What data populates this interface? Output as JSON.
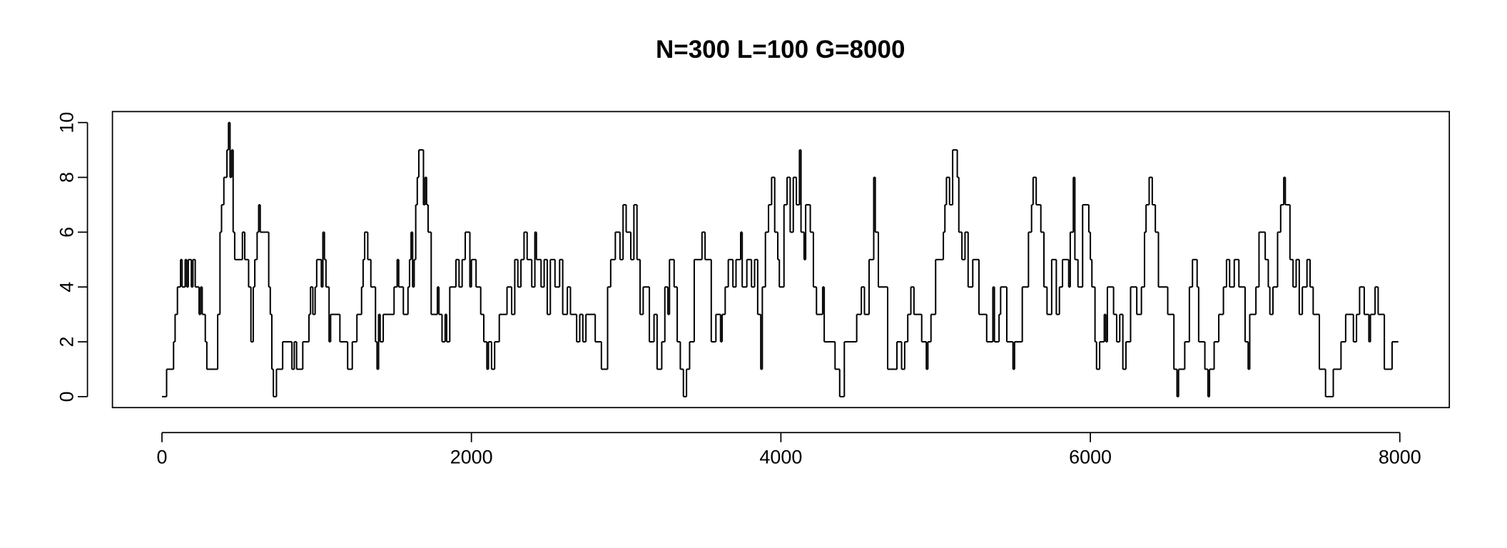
{
  "chart_data": {
    "type": "line",
    "step": true,
    "title": "N=300 L=100 G=8000",
    "color": "#000000",
    "x": [
      0,
      30,
      75,
      85,
      100,
      120,
      130,
      150,
      160,
      170,
      190,
      200,
      215,
      240,
      250,
      260,
      280,
      290,
      360,
      375,
      385,
      400,
      420,
      430,
      440,
      450,
      460,
      470,
      520,
      535,
      560,
      575,
      590,
      600,
      615,
      625,
      635,
      690,
      700,
      710,
      720,
      740,
      780,
      840,
      855,
      870,
      910,
      950,
      960,
      975,
      990,
      1000,
      1030,
      1040,
      1050,
      1060,
      1080,
      1090,
      1150,
      1200,
      1230,
      1260,
      1290,
      1300,
      1310,
      1330,
      1350,
      1380,
      1390,
      1400,
      1410,
      1430,
      1500,
      1520,
      1530,
      1560,
      1590,
      1600,
      1610,
      1620,
      1630,
      1640,
      1650,
      1660,
      1690,
      1700,
      1710,
      1720,
      1740,
      1780,
      1790,
      1810,
      1830,
      1840,
      1860,
      1900,
      1920,
      1940,
      1960,
      1990,
      2000,
      2030,
      2060,
      2080,
      2100,
      2110,
      2130,
      2150,
      2180,
      2230,
      2260,
      2280,
      2300,
      2320,
      2340,
      2360,
      2390,
      2410,
      2420,
      2450,
      2470,
      2490,
      2510,
      2540,
      2570,
      2590,
      2620,
      2640,
      2680,
      2700,
      2720,
      2740,
      2800,
      2840,
      2880,
      2900,
      2930,
      2960,
      2980,
      3000,
      3030,
      3050,
      3070,
      3090,
      3110,
      3150,
      3180,
      3200,
      3230,
      3250,
      3270,
      3280,
      3310,
      3330,
      3350,
      3370,
      3390,
      3410,
      3440,
      3490,
      3510,
      3550,
      3580,
      3610,
      3620,
      3640,
      3660,
      3690,
      3710,
      3740,
      3750,
      3780,
      3810,
      3830,
      3850,
      3870,
      3880,
      3900,
      3920,
      3940,
      3960,
      3980,
      3990,
      4020,
      4040,
      4060,
      4080,
      4100,
      4120,
      4130,
      4150,
      4160,
      4190,
      4210,
      4230,
      4270,
      4280,
      4350,
      4380,
      4410,
      4490,
      4520,
      4540,
      4570,
      4600,
      4610,
      4630,
      4690,
      4750,
      4780,
      4800,
      4820,
      4840,
      4860,
      4910,
      4940,
      4950,
      4970,
      5000,
      5050,
      5060,
      5070,
      5090,
      5110,
      5140,
      5150,
      5170,
      5190,
      5210,
      5240,
      5280,
      5330,
      5370,
      5380,
      5410,
      5420,
      5460,
      5500,
      5510,
      5560,
      5600,
      5620,
      5630,
      5650,
      5680,
      5700,
      5720,
      5750,
      5780,
      5800,
      5820,
      5860,
      5870,
      5890,
      5900,
      5920,
      5950,
      5990,
      6000,
      6010,
      6030,
      6040,
      6060,
      6090,
      6100,
      6110,
      6150,
      6170,
      6190,
      6210,
      6230,
      6260,
      6300,
      6330,
      6350,
      6360,
      6380,
      6400,
      6420,
      6440,
      6500,
      6540,
      6560,
      6570,
      6610,
      6640,
      6660,
      6690,
      6700,
      6740,
      6760,
      6770,
      6800,
      6830,
      6860,
      6880,
      6900,
      6930,
      6960,
      7000,
      7020,
      7030,
      7070,
      7090,
      7130,
      7150,
      7160,
      7180,
      7210,
      7230,
      7250,
      7260,
      7290,
      7310,
      7330,
      7350,
      7370,
      7400,
      7420,
      7440,
      7480,
      7520,
      7570,
      7620,
      7650,
      7700,
      7720,
      7740,
      7770,
      7800,
      7810,
      7840,
      7860,
      7900,
      7950,
      7990
    ],
    "values": [
      0,
      1,
      2,
      3,
      4,
      5,
      4,
      5,
      4,
      5,
      4,
      5,
      4,
      3,
      4,
      3,
      2,
      1,
      3,
      6,
      7,
      8,
      9,
      10,
      8,
      9,
      6,
      5,
      6,
      5,
      4,
      2,
      4,
      5,
      6,
      7,
      6,
      4,
      3,
      1,
      0,
      1,
      2,
      1,
      2,
      1,
      2,
      3,
      4,
      3,
      4,
      5,
      4,
      6,
      5,
      4,
      2,
      3,
      2,
      1,
      2,
      3,
      4,
      5,
      6,
      5,
      4,
      2,
      1,
      3,
      2,
      3,
      4,
      5,
      4,
      3,
      4,
      5,
      6,
      4,
      5,
      7,
      8,
      9,
      7,
      8,
      7,
      6,
      3,
      4,
      3,
      2,
      3,
      2,
      4,
      5,
      4,
      5,
      6,
      4,
      5,
      4,
      3,
      2,
      1,
      2,
      1,
      2,
      3,
      4,
      3,
      5,
      4,
      5,
      6,
      5,
      4,
      6,
      5,
      4,
      5,
      3,
      5,
      4,
      5,
      3,
      4,
      3,
      2,
      3,
      2,
      3,
      2,
      1,
      4,
      5,
      6,
      5,
      7,
      6,
      5,
      7,
      5,
      3,
      4,
      2,
      3,
      1,
      2,
      4,
      3,
      5,
      4,
      2,
      1,
      0,
      1,
      2,
      5,
      6,
      5,
      2,
      3,
      2,
      3,
      4,
      5,
      4,
      5,
      6,
      4,
      5,
      4,
      5,
      3,
      1,
      4,
      6,
      7,
      8,
      6,
      5,
      4,
      7,
      8,
      6,
      8,
      7,
      9,
      6,
      5,
      7,
      6,
      4,
      3,
      4,
      2,
      1,
      0,
      2,
      3,
      4,
      3,
      5,
      8,
      6,
      4,
      1,
      2,
      1,
      2,
      3,
      4,
      3,
      2,
      1,
      2,
      3,
      5,
      6,
      7,
      8,
      7,
      9,
      8,
      6,
      5,
      6,
      4,
      5,
      3,
      2,
      4,
      2,
      3,
      4,
      2,
      1,
      2,
      4,
      6,
      7,
      8,
      7,
      6,
      4,
      3,
      5,
      3,
      4,
      5,
      4,
      6,
      8,
      5,
      4,
      7,
      6,
      5,
      4,
      2,
      1,
      2,
      3,
      2,
      4,
      3,
      2,
      3,
      1,
      2,
      4,
      3,
      4,
      6,
      7,
      8,
      7,
      6,
      4,
      3,
      1,
      0,
      1,
      2,
      4,
      5,
      4,
      2,
      1,
      0,
      1,
      2,
      3,
      4,
      5,
      4,
      5,
      4,
      2,
      1,
      3,
      4,
      6,
      5,
      4,
      3,
      4,
      6,
      7,
      8,
      7,
      5,
      4,
      5,
      3,
      4,
      5,
      4,
      3,
      1,
      0,
      1,
      2,
      3,
      2,
      3,
      4,
      3,
      2,
      3,
      4,
      3,
      1,
      2,
      2
    ],
    "xlim": [
      -320,
      8320
    ],
    "ylim": [
      -0.4,
      10.4
    ],
    "xticks": [
      0,
      2000,
      4000,
      6000,
      8000
    ],
    "yticks": [
      0,
      2,
      4,
      6,
      8,
      10
    ]
  }
}
